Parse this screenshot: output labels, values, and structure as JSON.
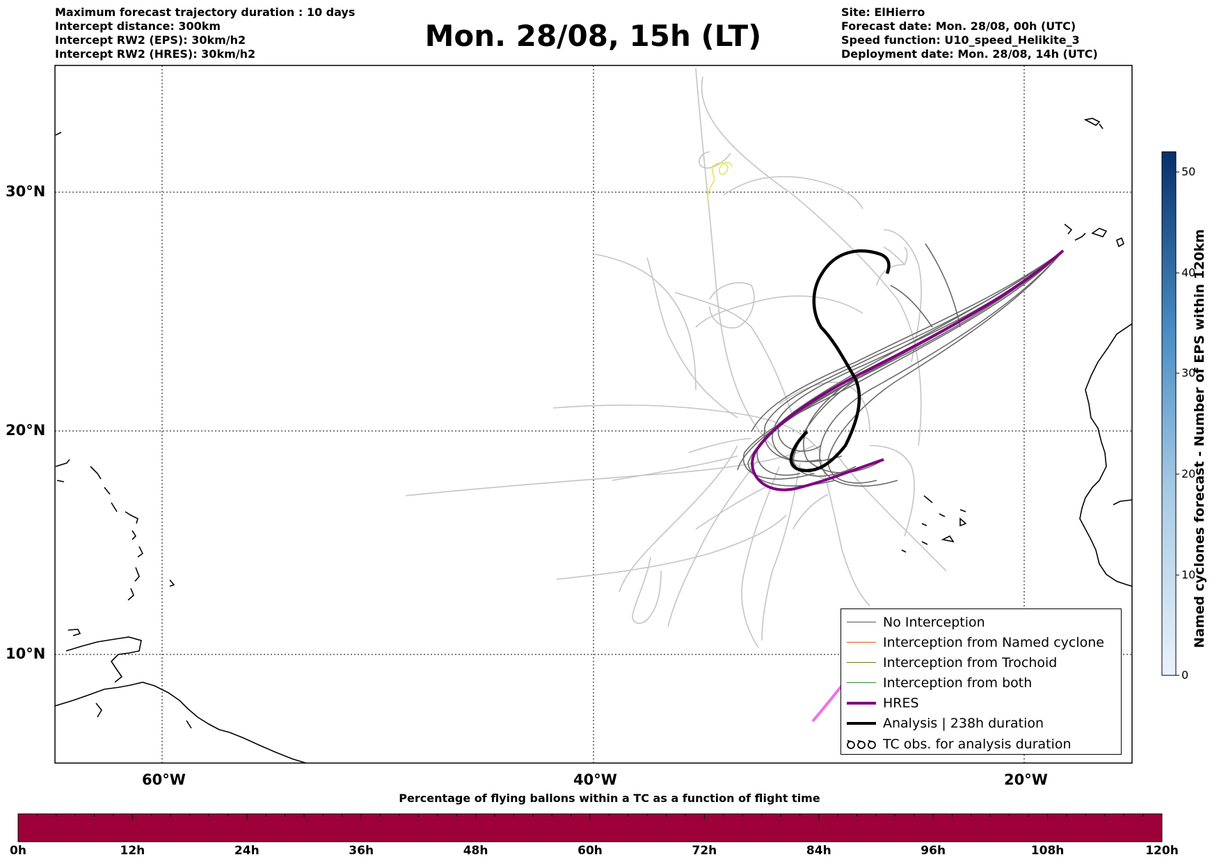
{
  "header": {
    "title": "Mon. 28/08, 15h (LT)",
    "left_lines": [
      "Maximum forecast trajectory duration : 10 days",
      "Intercept distance: 300km",
      "Intercept RW2 (EPS):  30km/h2",
      "Intercept RW2 (HRES): 30km/h2"
    ],
    "right_lines": [
      "Site: ElHierro",
      "Forecast date: Mon. 28/08, 00h (UTC)",
      "Speed function: U10_speed_Helikite_3",
      "Deployment date: Mon. 28/08, 14h (UTC)"
    ]
  },
  "map": {
    "lon_ticks": [
      "60°W",
      "40°W",
      "20°W"
    ],
    "lat_ticks": [
      "30°N",
      "20°N",
      "10°N"
    ]
  },
  "legend": {
    "items": [
      {
        "label": "No Interception",
        "color": "#555555",
        "style": "thin"
      },
      {
        "label": "Interception from Named cyclone",
        "color": "#e0531f",
        "style": "thin"
      },
      {
        "label": "Interception from Trochoid",
        "color": "#6b7a10",
        "style": "thin"
      },
      {
        "label": "Interception from both",
        "color": "#2a8a2a",
        "style": "thin"
      },
      {
        "label": "HRES",
        "color": "#800080",
        "style": "thick"
      },
      {
        "label": "Analysis | 238h duration",
        "color": "#000000",
        "style": "thick"
      },
      {
        "label": "TC obs. for analysis duration",
        "color": "#000000",
        "style": "loops"
      }
    ]
  },
  "colorbar": {
    "title": "Named cyclones forecast - Number of EPS within 120km",
    "ticks": [
      "0",
      "10",
      "20",
      "30",
      "40",
      "50"
    ],
    "min_color": "#eaf2fb",
    "max_color": "#08306b"
  },
  "timebar": {
    "title": "Percentage of flying ballons within a TC as a function of flight time",
    "ticks": [
      "0h",
      "12h",
      "24h",
      "36h",
      "48h",
      "60h",
      "72h",
      "84h",
      "96h",
      "108h",
      "120h"
    ],
    "fill_color": "#9e003a"
  }
}
